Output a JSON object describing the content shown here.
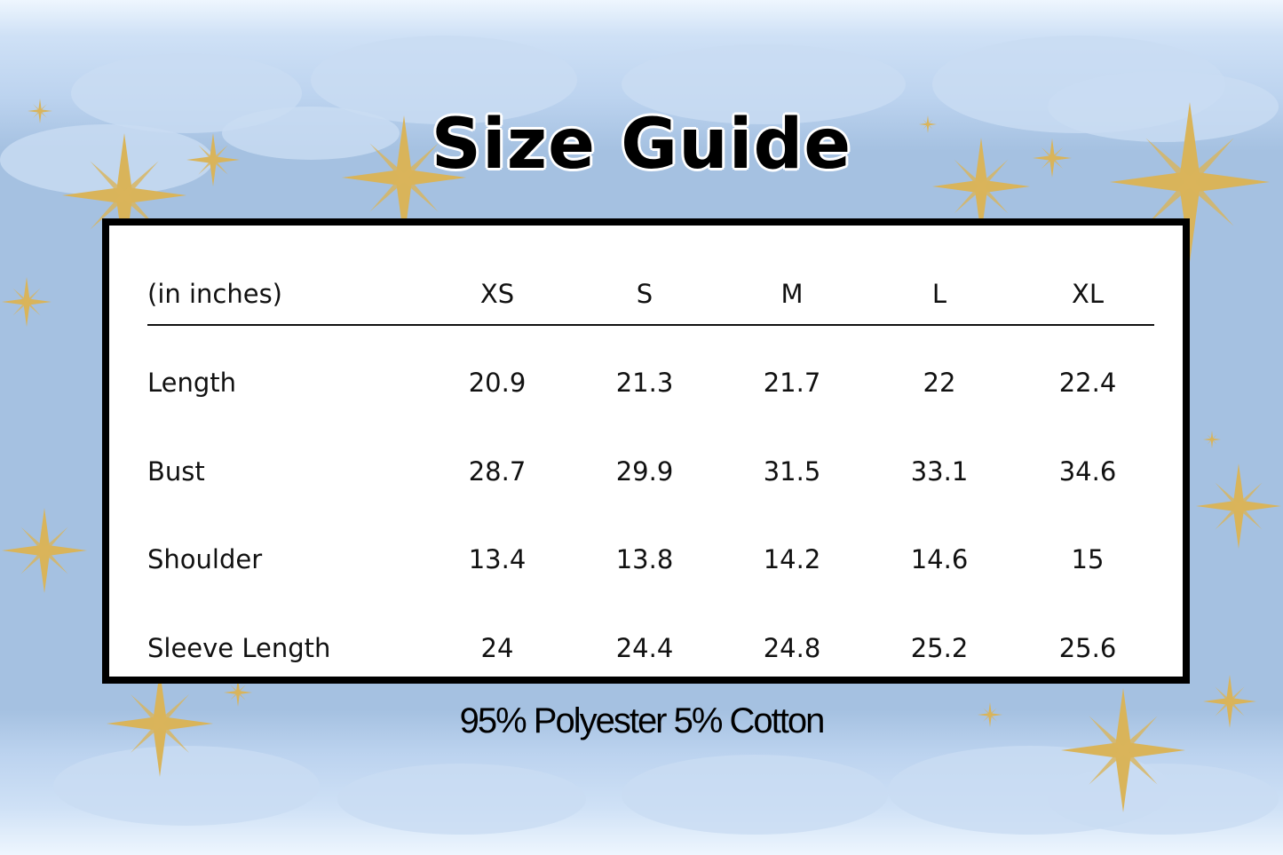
{
  "title": "Size Guide",
  "table": {
    "unit_label": "(in inches)",
    "sizes": [
      "XS",
      "S",
      "M",
      "L",
      "XL"
    ],
    "rows": [
      {
        "label": "Length",
        "values": [
          "20.9",
          "21.3",
          "21.7",
          "22",
          "22.4"
        ]
      },
      {
        "label": "Bust",
        "values": [
          "28.7",
          "29.9",
          "31.5",
          "33.1",
          "34.6"
        ]
      },
      {
        "label": "Shoulder",
        "values": [
          "13.4",
          "13.8",
          "14.2",
          "14.6",
          "15"
        ]
      },
      {
        "label": "Sleeve Length",
        "values": [
          "24",
          "24.4",
          "24.8",
          "25.2",
          "25.6"
        ]
      }
    ]
  },
  "footer": "95% Polyester 5% Cotton",
  "colors": {
    "background": "#a5c1e1",
    "cloud": "#c9dcf3",
    "star": "#d9b45a",
    "border": "#000000"
  }
}
